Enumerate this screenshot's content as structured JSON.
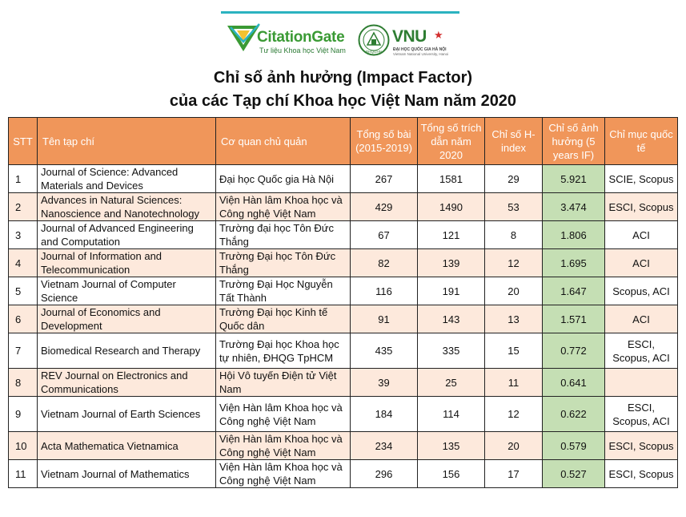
{
  "logo": {
    "citationgate": {
      "name": "CitationGate",
      "tagline": "Tư liệu Khoa học Việt Nam"
    },
    "vnu": {
      "name": "VNU",
      "seal_text": "ĐHQGHN",
      "subtitle_vi": "ĐẠI HỌC QUỐC GIA HÀ NỘI",
      "subtitle_en": "Vietnam National University, Hanoi"
    },
    "colors": {
      "green": "#3a9a34",
      "teal": "#2bb3c0",
      "red": "#d32f2f"
    }
  },
  "title": {
    "line1": "Chỉ số ảnh hưởng (Impact Factor)",
    "line2": "của các Tạp chí Khoa học Việt Nam năm 2020"
  },
  "table": {
    "header_color": "#f0965a",
    "alt_row_color": "#fde9dc",
    "if_column_color": "#c5dfb4",
    "headers": {
      "stt": "STT",
      "journal": "Tên tạp chí",
      "agency": "Cơ quan chủ quản",
      "articles": "Tổng số bài (2015-2019)",
      "citations": "Tổng số trích dẫn năm 2020",
      "hindex": "Chỉ số H-index",
      "if5": "Chỉ số ảnh hưởng (5 years IF)",
      "indexing": "Chỉ mục quốc tế"
    },
    "rows": [
      {
        "stt": "1",
        "journal": "Journal of Science: Advanced Materials and Devices",
        "agency": "Đại học Quốc gia Hà Nội",
        "articles": "267",
        "citations": "1581",
        "hindex": "29",
        "if5": "5.921",
        "indexing": "SCIE, Scopus"
      },
      {
        "stt": "2",
        "journal": "Advances in Natural Sciences: Nanoscience and Nanotechnology",
        "agency": "Viện Hàn lâm Khoa học và Công nghệ Việt Nam",
        "articles": "429",
        "citations": "1490",
        "hindex": "53",
        "if5": "3.474",
        "indexing": "ESCI, Scopus"
      },
      {
        "stt": "3",
        "journal": "Journal of Advanced Engineering  and Computation",
        "agency": "Trường đại học Tôn Đức Thắng",
        "articles": "67",
        "citations": "121",
        "hindex": "8",
        "if5": "1.806",
        "indexing": "ACI"
      },
      {
        "stt": "4",
        "journal": "Journal of Information and Telecommunication",
        "agency": "Trường Đại học Tôn Đức Thắng",
        "articles": "82",
        "citations": "139",
        "hindex": "12",
        "if5": "1.695",
        "indexing": "ACI"
      },
      {
        "stt": "5",
        "journal": "Vietnam Journal of Computer Science",
        "agency": "Trường Đại Học Nguyễn Tất Thành",
        "articles": "116",
        "citations": "191",
        "hindex": "20",
        "if5": "1.647",
        "indexing": "Scopus, ACI"
      },
      {
        "stt": "6",
        "journal": "Journal of Economics and Development",
        "agency": "Trường Đại học Kinh tế Quốc dân",
        "articles": "91",
        "citations": "143",
        "hindex": "13",
        "if5": "1.571",
        "indexing": "ACI"
      },
      {
        "stt": "7",
        "journal": "Biomedical Research and Therapy",
        "agency": "Trường Đại học Khoa học tự nhiên, ĐHQG TpHCM",
        "articles": "435",
        "citations": "335",
        "hindex": "15",
        "if5": "0.772",
        "indexing": "ESCI, Scopus, ACI"
      },
      {
        "stt": "8",
        "journal": "REV Journal on Electronics and Communications",
        "agency": "Hội Vô tuyến Điện tử Việt Nam",
        "articles": "39",
        "citations": "25",
        "hindex": "11",
        "if5": "0.641",
        "indexing": ""
      },
      {
        "stt": "9",
        "journal": "Vietnam Journal of Earth Sciences",
        "agency": "Viện Hàn lâm Khoa học và Công nghệ Việt Nam",
        "articles": "184",
        "citations": "114",
        "hindex": "12",
        "if5": "0.622",
        "indexing": "ESCI, Scopus, ACI"
      },
      {
        "stt": "10",
        "journal": "Acta Mathematica Vietnamica",
        "agency": "Viện Hàn lâm Khoa học và Công nghệ Việt Nam",
        "articles": "234",
        "citations": "135",
        "hindex": "20",
        "if5": "0.579",
        "indexing": "ESCI, Scopus"
      },
      {
        "stt": "11",
        "journal": "Vietnam Journal of Mathematics",
        "agency": "Viện Hàn lâm Khoa học và Công nghệ Việt Nam",
        "articles": "296",
        "citations": "156",
        "hindex": "17",
        "if5": "0.527",
        "indexing": "ESCI, Scopus"
      }
    ]
  }
}
